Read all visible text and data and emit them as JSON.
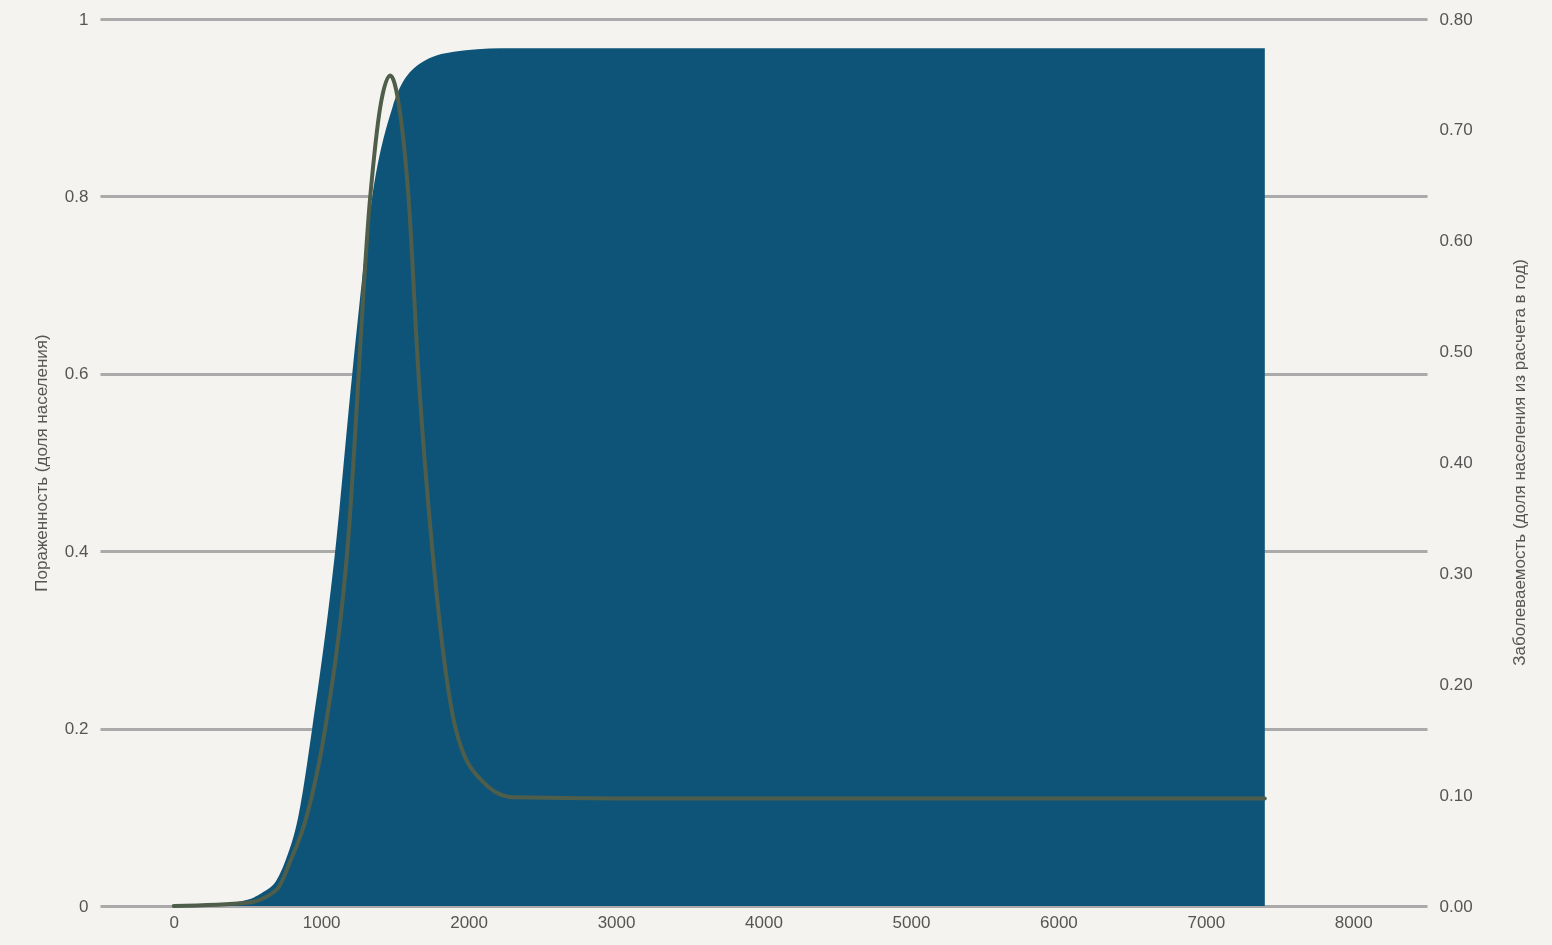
{
  "chart_data": {
    "type": "line",
    "ylabel": "Пораженность (доля населения)",
    "y2label": "Заболеваемость (доля населения  из расчета в год)",
    "xlim": [
      -500,
      8500
    ],
    "xticks": [
      0,
      1000,
      2000,
      3000,
      4000,
      5000,
      6000,
      7000,
      8000
    ],
    "ylim": [
      0,
      1
    ],
    "yticks": [
      0,
      0.2,
      0.4,
      0.6,
      0.8,
      1
    ],
    "y2lim": [
      0,
      0.8
    ],
    "y2ticks": [
      {
        "value": 0,
        "label": "0.00"
      },
      {
        "value": 0.1,
        "label": "0.10"
      },
      {
        "value": 0.2,
        "label": "0.20"
      },
      {
        "value": 0.3,
        "label": "0.30"
      },
      {
        "value": 0.4,
        "label": "0.40"
      },
      {
        "value": 0.5,
        "label": "0.50"
      },
      {
        "value": 0.6,
        "label": "0.60"
      },
      {
        "value": 0.7,
        "label": "0.70"
      },
      {
        "value": 0.8,
        "label": "0.80"
      }
    ],
    "grid": "y",
    "series": [
      {
        "type": "area",
        "color": "#0e5479",
        "x": [
          0,
          300,
          500,
          600,
          700,
          755,
          844,
          939,
          1095,
          1211,
          1347,
          1483,
          1673,
          1900,
          2218,
          3000,
          4000,
          5000,
          6000,
          7000,
          7400
        ],
        "values": [
          0,
          0.002,
          0.007,
          0.015,
          0.03,
          0.05,
          0.1,
          0.2,
          0.4,
          0.6,
          0.8,
          0.9,
          0.95,
          0.963,
          0.967,
          0.967,
          0.967,
          0.967,
          0.967,
          0.967,
          0.967
        ]
      },
      {
        "type": "line",
        "axis": "y2",
        "color": "#4e5e4a",
        "x": [
          0,
          500,
          700,
          789,
          900,
          1027,
          1177,
          1333,
          1400,
          1469,
          1530,
          1592,
          1660,
          1755,
          1912,
          2082,
          2300,
          3000,
          4000,
          5000,
          6000,
          7000,
          7400
        ],
        "values": [
          0,
          0.003,
          0.015,
          0.04,
          0.08,
          0.16,
          0.32,
          0.64,
          0.72,
          0.749,
          0.72,
          0.64,
          0.48,
          0.32,
          0.16,
          0.114,
          0.098,
          0.097,
          0.097,
          0.097,
          0.097,
          0.097,
          0.097
        ]
      }
    ]
  }
}
